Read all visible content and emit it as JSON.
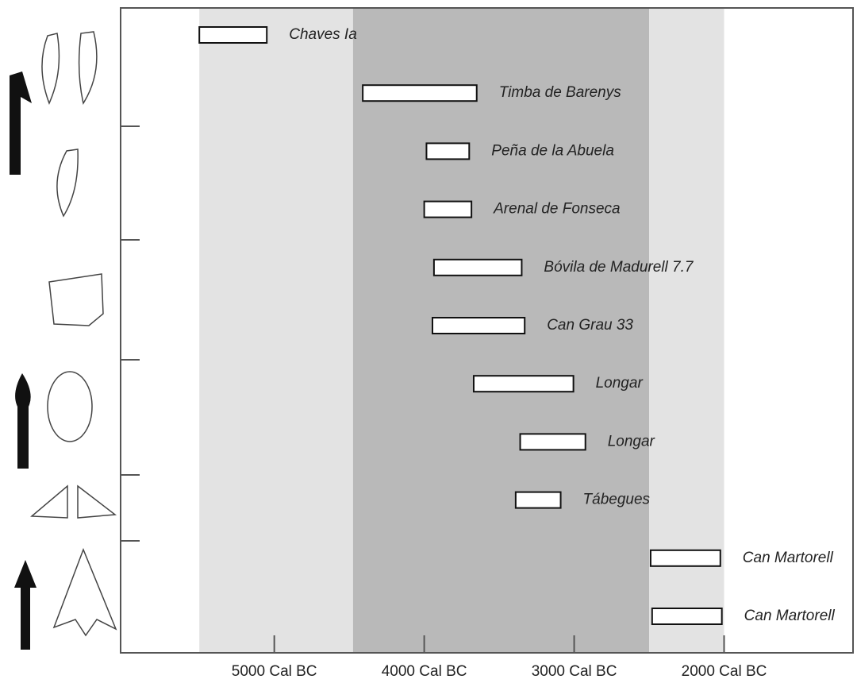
{
  "chart_data": {
    "type": "range",
    "categories": [
      "Chaves Ia",
      "Timba de Barenys",
      "Peña de la Abuela",
      "Arenal de Fonseca",
      "Bóvila de Madurell 7.7",
      "Can Grau 33",
      "Longar",
      "Longar",
      "Tábegues",
      "Can Martorell",
      "Can Martorell"
    ],
    "values": [
      [
        5500,
        5050
      ],
      [
        4410,
        3650
      ],
      [
        3985,
        3700
      ],
      [
        4000,
        3685
      ],
      [
        3935,
        3350
      ],
      [
        3945,
        3330
      ],
      [
        3670,
        3005
      ],
      [
        3360,
        2925
      ],
      [
        3390,
        3090
      ],
      [
        2490,
        2025
      ],
      [
        2480,
        2015
      ]
    ],
    "color": "#ffffff",
    "bands": [
      {
        "start": 5500,
        "end": 4475,
        "color": "#e3e3e3"
      },
      {
        "start": 4475,
        "end": 2500,
        "color": "#b9b9b9"
      },
      {
        "start": 2500,
        "end": 2000,
        "color": "#e3e3e3"
      }
    ],
    "xlim": [
      6025,
      1140
    ],
    "xticks": [
      {
        "value": 5000,
        "label": "5000 Cal BC"
      },
      {
        "value": 4000,
        "label": "4000 Cal BC"
      },
      {
        "value": 3000,
        "label": "3000 Cal BC"
      },
      {
        "value": 2000,
        "label": "2000 Cal BC"
      }
    ]
  }
}
